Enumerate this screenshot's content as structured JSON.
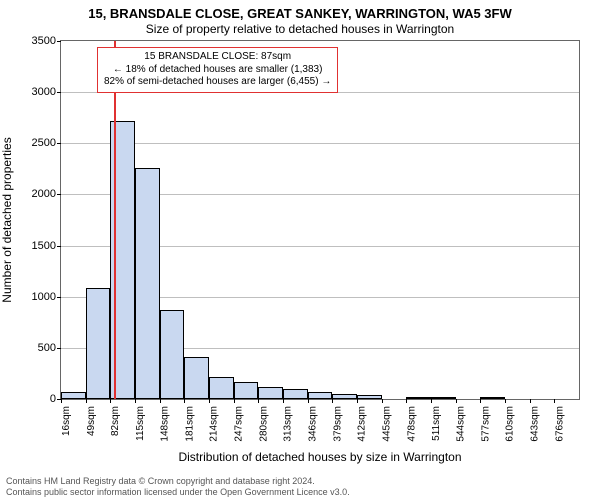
{
  "titles": {
    "line1": "15, BRANSDALE CLOSE, GREAT SANKEY, WARRINGTON, WA5 3FW",
    "line2": "Size of property relative to detached houses in Warrington"
  },
  "axes": {
    "ylabel": "Number of detached properties",
    "xlabel": "Distribution of detached houses by size in Warrington",
    "ylim": [
      0,
      3500
    ],
    "ytick_step": 500,
    "xtick_start": 16,
    "xtick_step": 33,
    "xtick_count": 21,
    "xtick_suffix": "sqm",
    "label_fontsize": 12,
    "tick_fontsize": 10
  },
  "style": {
    "bar_fill": "#c9d8f0",
    "bar_stroke": "#000000",
    "grid_color": "#bfbfbf",
    "background": "#ffffff",
    "marker_color": "#e03131",
    "annot_border": "#e03131"
  },
  "histogram": {
    "type": "histogram",
    "bin_width_sqm": 33,
    "bin_start_sqm": 16,
    "values": [
      70,
      1090,
      2720,
      2260,
      870,
      410,
      220,
      170,
      120,
      100,
      70,
      50,
      40,
      0,
      10,
      10,
      0,
      10,
      0,
      0,
      0
    ]
  },
  "marker": {
    "position_sqm": 87
  },
  "annotation": {
    "line1": "15 BRANSDALE CLOSE: 87sqm",
    "line2": "← 18% of detached houses are smaller (1,383)",
    "line3": "82% of semi-detached houses are larger (6,455) →"
  },
  "footer": {
    "line1": "Contains HM Land Registry data © Crown copyright and database right 2024.",
    "line2": "Contains public sector information licensed under the Open Government Licence v3.0."
  }
}
